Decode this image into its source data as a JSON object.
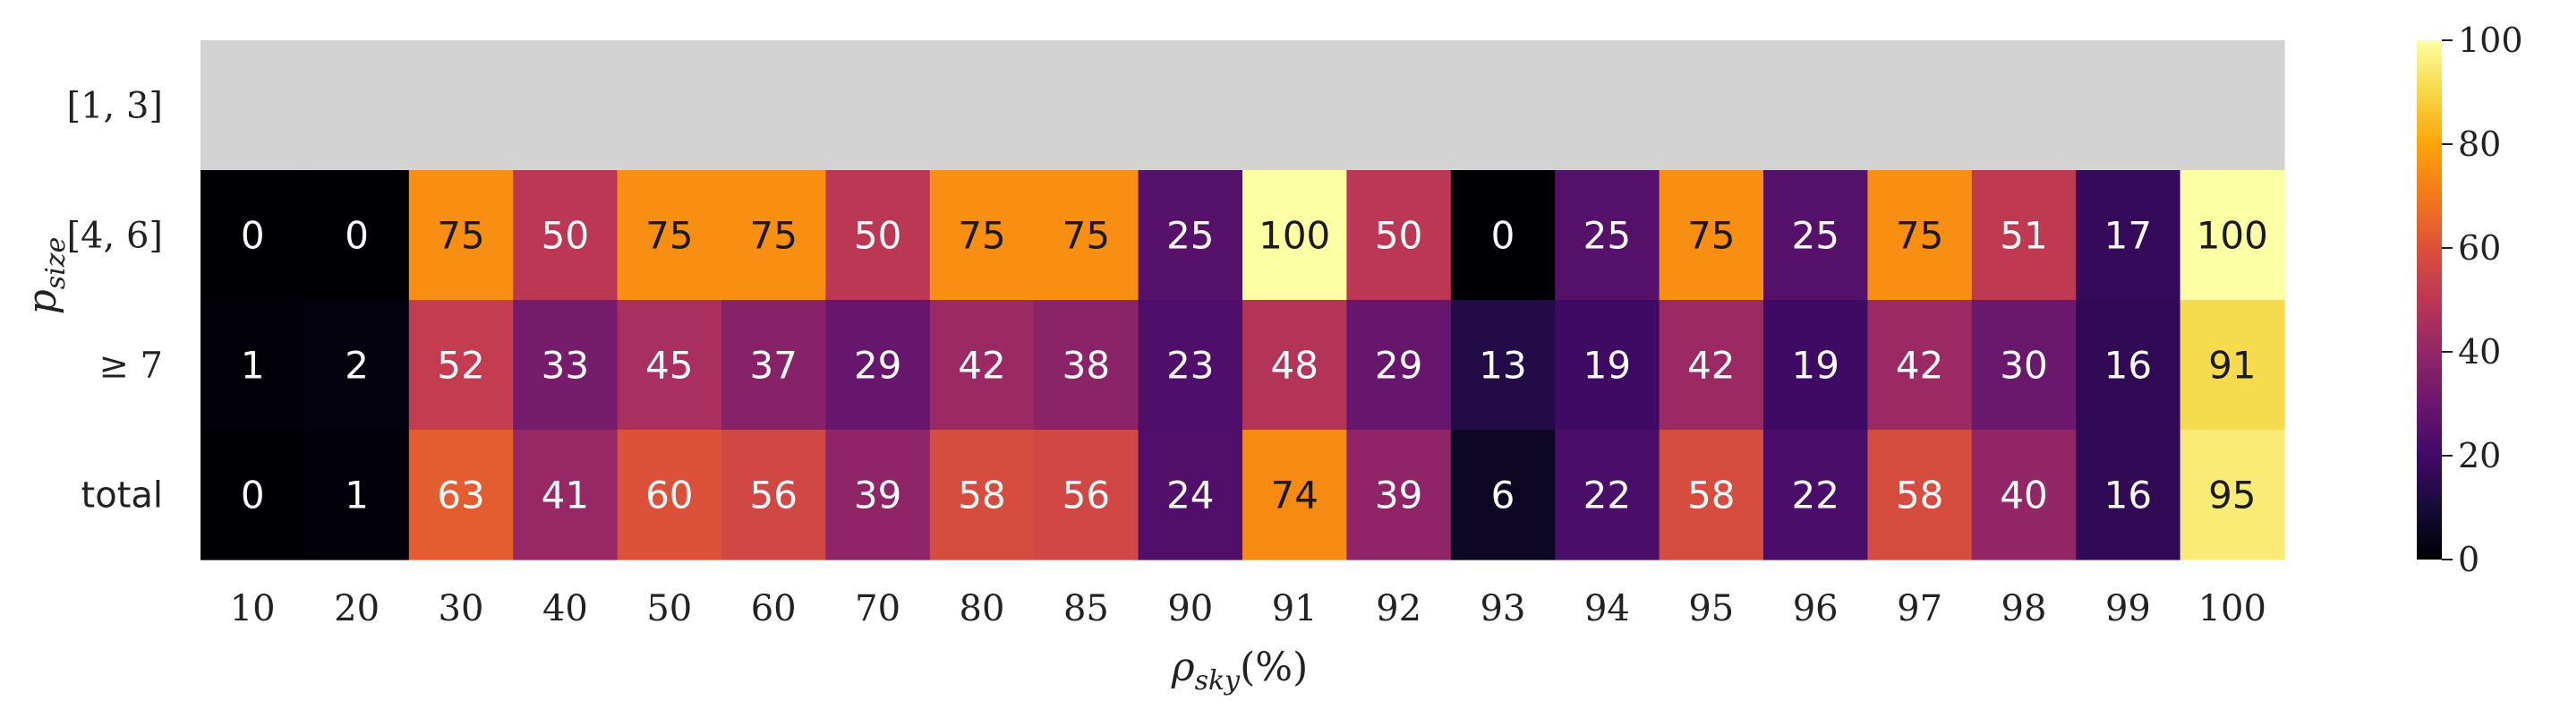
{
  "chart_data": {
    "type": "heatmap",
    "xlabel_base": "ρ",
    "xlabel_sub": "sky",
    "xlabel_suffix": "(%)",
    "ylabel_base": "p",
    "ylabel_sub": "size",
    "x_categories": [
      "10",
      "20",
      "30",
      "40",
      "50",
      "60",
      "70",
      "80",
      "85",
      "90",
      "91",
      "92",
      "93",
      "94",
      "95",
      "96",
      "97",
      "98",
      "99",
      "100"
    ],
    "y_categories": [
      "[1, 3]",
      "[4, 6]",
      "≥ 7",
      "total"
    ],
    "values": [
      [
        null,
        null,
        null,
        null,
        null,
        null,
        null,
        null,
        null,
        null,
        null,
        null,
        null,
        null,
        null,
        null,
        null,
        null,
        null,
        null
      ],
      [
        0,
        0,
        75,
        50,
        75,
        75,
        50,
        75,
        75,
        25,
        100,
        50,
        0,
        25,
        75,
        25,
        75,
        51,
        17,
        100
      ],
      [
        1,
        2,
        52,
        33,
        45,
        37,
        29,
        42,
        38,
        23,
        48,
        29,
        13,
        19,
        42,
        19,
        42,
        30,
        16,
        91
      ],
      [
        0,
        1,
        63,
        41,
        60,
        56,
        39,
        58,
        56,
        24,
        74,
        39,
        6,
        22,
        58,
        22,
        58,
        40,
        16,
        95
      ]
    ],
    "missing_color": "#d3d3d3",
    "colormap": "inferno",
    "colorbar": {
      "range": [
        0,
        100
      ],
      "ticks": [
        "0",
        "20",
        "40",
        "60",
        "80",
        "100"
      ]
    }
  }
}
